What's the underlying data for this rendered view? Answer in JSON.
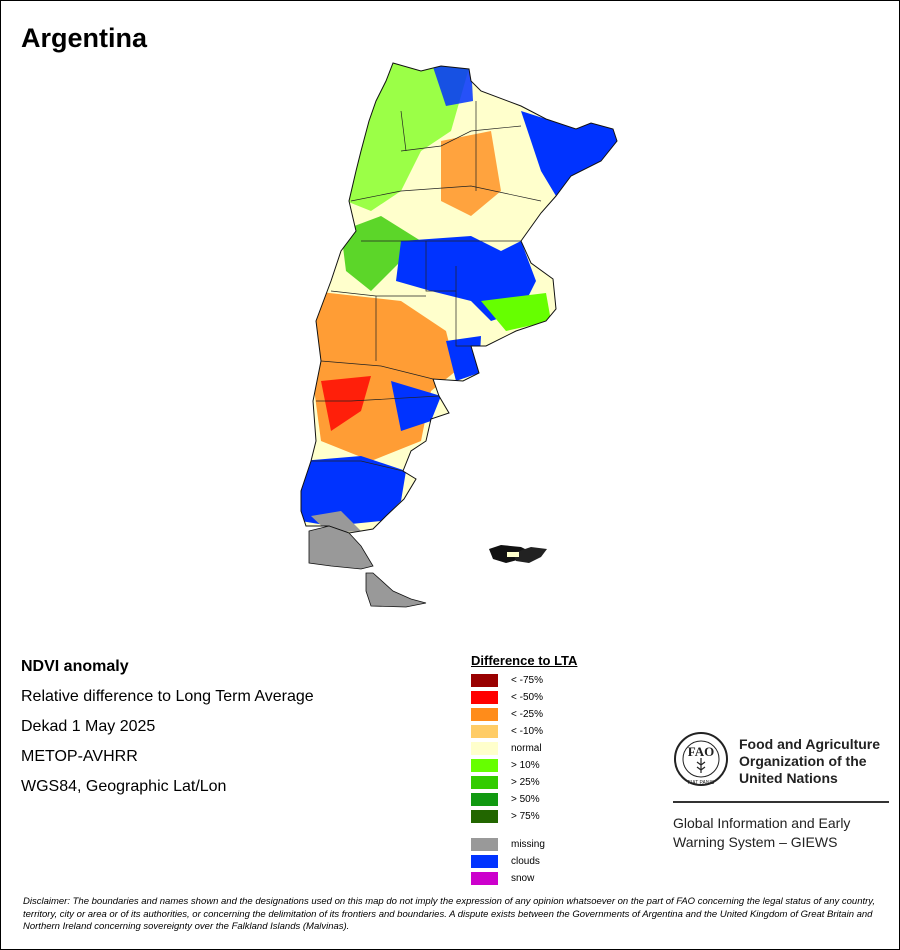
{
  "title": "Argentina",
  "info": {
    "product": "NDVI anomaly",
    "description": "Relative difference to Long Term Average",
    "period": "Dekad 1 May 2025",
    "sensor": "METOP-AVHRR",
    "projection": "WGS84, Geographic Lat/Lon"
  },
  "legend": {
    "title": "Difference to LTA",
    "items": [
      {
        "label": "< -75%",
        "color": "#990000"
      },
      {
        "label": "< -50%",
        "color": "#ff0000"
      },
      {
        "label": "< -25%",
        "color": "#ff8c1a"
      },
      {
        "label": "< -10%",
        "color": "#ffcc66"
      },
      {
        "label": "normal",
        "color": "#ffffcc"
      },
      {
        "label": "> 10%",
        "color": "#66ff00"
      },
      {
        "label": "> 25%",
        "color": "#33cc00"
      },
      {
        "label": "> 50%",
        "color": "#119911"
      },
      {
        "label": "> 75%",
        "color": "#226600"
      }
    ],
    "extra": [
      {
        "label": "missing",
        "color": "#999999"
      },
      {
        "label": "clouds",
        "color": "#0033ff"
      },
      {
        "label": "snow",
        "color": "#cc00cc"
      }
    ]
  },
  "fao": {
    "logo_letters": "FAO",
    "logo_motto": "FIAT PANIS",
    "name_line1": "Food and Agriculture",
    "name_line2": "Organization of the",
    "name_line3": "United Nations",
    "giews_line1": "Global Information and Early",
    "giews_line2": "Warning System – GIEWS"
  },
  "disclaimer": "Disclaimer: The boundaries and names shown and the designations used on this map do not imply the expression of any opinion whatsoever on the part of FAO concerning the legal status of any country, territory, city or area or of its authorities, or concerning the delimitation of its frontiers and boundaries. A dispute exists between the Governments of Argentina and the United Kingdom of Great Britain and Northern Ireland concerning sovereignty over the Falkland Islands (Malvinas)."
}
